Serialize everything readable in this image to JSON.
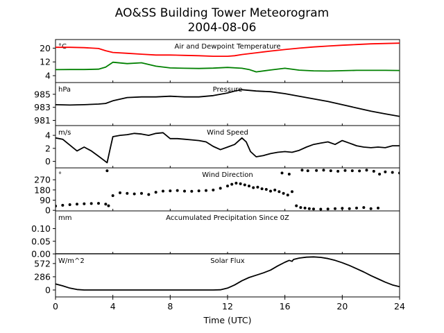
{
  "title": "AO&SS Building Tower Meteorogram",
  "subtitle": "2004-08-06",
  "xlabel": "Time (UTC)",
  "x_ticks": [
    "0",
    "4",
    "8",
    "12",
    "16",
    "20",
    "24"
  ],
  "chart_data": [
    {
      "type": "line",
      "title": "Air and Dewpoint Temperature",
      "unit": "°C",
      "ylim": [
        0,
        25
      ],
      "yticks": [
        4,
        12,
        20
      ],
      "x_range": [
        0,
        24
      ],
      "series": [
        {
          "color": "#ff0000",
          "x": [
            0,
            1,
            2,
            3,
            3.5,
            4,
            5,
            6,
            7,
            8,
            9,
            10,
            11,
            12,
            12.5,
            13,
            14,
            15,
            16,
            17,
            18,
            19,
            20,
            21,
            22,
            23,
            24
          ],
          "values": [
            20.5,
            20.5,
            20.3,
            19.8,
            18.5,
            17.5,
            17,
            16.5,
            16,
            16,
            15.8,
            15.6,
            15.3,
            15.3,
            15.6,
            16.3,
            17.3,
            18.3,
            19.2,
            20,
            20.7,
            21.2,
            21.7,
            22.1,
            22.5,
            22.7,
            22.9
          ]
        },
        {
          "color": "#008000",
          "x": [
            0,
            1,
            2,
            3,
            3.5,
            4,
            5,
            6,
            7,
            8,
            9,
            10,
            11,
            12,
            13,
            13.5,
            14,
            15,
            16,
            17,
            18,
            19,
            20,
            21,
            22,
            23,
            24
          ],
          "values": [
            7.5,
            7.6,
            7.6,
            7.8,
            9,
            11.8,
            11,
            11.5,
            9.5,
            8.5,
            8.3,
            8.2,
            8.4,
            8.8,
            8.3,
            7.6,
            6.2,
            7.3,
            8.3,
            7.2,
            6.8,
            6.7,
            6.9,
            7.1,
            7.1,
            7.1,
            7
          ]
        }
      ]
    },
    {
      "type": "line",
      "title": "Pressure",
      "unit": "hPa",
      "ylim": [
        980.2,
        986.8
      ],
      "yticks": [
        981,
        983,
        985
      ],
      "x_range": [
        0,
        24
      ],
      "series": [
        {
          "color": "#000000",
          "x": [
            0,
            1,
            2,
            3,
            3.5,
            4,
            5,
            6,
            7,
            8,
            9,
            10,
            11,
            12,
            12.5,
            13,
            14,
            15,
            16,
            17,
            18,
            19,
            20,
            21,
            22,
            23,
            24
          ],
          "values": [
            983.4,
            983.35,
            983.4,
            983.5,
            983.6,
            984,
            984.5,
            984.6,
            984.6,
            984.7,
            984.6,
            984.6,
            984.8,
            985.2,
            985.5,
            985.7,
            985.5,
            985.4,
            985.1,
            984.7,
            984.3,
            983.9,
            983.4,
            982.9,
            982.4,
            982,
            981.6
          ]
        }
      ]
    },
    {
      "type": "line",
      "title": "Wind Speed",
      "unit": "m/s",
      "ylim": [
        -1,
        5.5
      ],
      "yticks": [
        0,
        2,
        4
      ],
      "x_range": [
        0,
        24
      ],
      "series": [
        {
          "color": "#000000",
          "x": [
            0,
            0.5,
            1,
            1.5,
            2,
            2.5,
            3,
            3.3,
            3.6,
            3.8,
            4,
            4.5,
            5,
            5.5,
            6,
            6.5,
            7,
            7.5,
            8,
            8.5,
            9,
            9.5,
            10,
            10.5,
            11,
            11.5,
            12,
            12.5,
            13,
            13.3,
            13.6,
            14,
            14.5,
            15,
            15.5,
            16,
            16.5,
            17,
            17.5,
            18,
            18.5,
            19,
            19.5,
            20,
            20.5,
            21,
            21.5,
            22,
            22.5,
            23,
            23.5,
            24
          ],
          "values": [
            3.6,
            3.4,
            2.5,
            1.6,
            2.2,
            1.6,
            0.8,
            0.3,
            -0.2,
            1.8,
            3.8,
            4,
            4.1,
            4.3,
            4.2,
            4,
            4.3,
            4.4,
            3.5,
            3.5,
            3.4,
            3.3,
            3.2,
            3,
            2.3,
            1.8,
            2.2,
            2.6,
            3.6,
            3,
            1.5,
            0.7,
            0.9,
            1.2,
            1.4,
            1.5,
            1.4,
            1.7,
            2.2,
            2.6,
            2.8,
            3,
            2.6,
            3.2,
            2.8,
            2.4,
            2.2,
            2.1,
            2.2,
            2.1,
            2.4,
            2.4
          ]
        }
      ]
    },
    {
      "type": "scatter",
      "title": "Wind Direction",
      "unit": "°",
      "ylim": [
        -5,
        375
      ],
      "yticks": [
        0,
        90,
        180,
        270
      ],
      "x_range": [
        0,
        24
      ],
      "series": [
        {
          "color": "#000000",
          "x": [
            0,
            0.5,
            1,
            1.5,
            2,
            2.5,
            3,
            3.5,
            3.7,
            4,
            4.5,
            5,
            5.5,
            6,
            6.5,
            7,
            7.5,
            8,
            8.5,
            9,
            9.5,
            10,
            10.5,
            11,
            11.5,
            12,
            12.3,
            12.6,
            12.9,
            13.2,
            13.5,
            13.8,
            14.1,
            14.4,
            14.7,
            15,
            15.3,
            15.6,
            15.9,
            16.2,
            16.5,
            16.8,
            17.1,
            17.4,
            17.7,
            18,
            18.5,
            19,
            19.5,
            20,
            20.5,
            21,
            21.5,
            22,
            22.5,
            3.6,
            15.8,
            16.3,
            17.2,
            17.6,
            18.2,
            18.7,
            19.2,
            19.7,
            20.2,
            20.7,
            21.2,
            21.7,
            22.2,
            22.6,
            23,
            23.5,
            24
          ],
          "values": [
            38,
            45,
            50,
            55,
            58,
            60,
            62,
            55,
            40,
            130,
            155,
            150,
            145,
            150,
            140,
            160,
            170,
            172,
            175,
            170,
            168,
            172,
            175,
            180,
            195,
            215,
            230,
            240,
            235,
            225,
            215,
            200,
            205,
            190,
            185,
            170,
            180,
            165,
            150,
            135,
            165,
            40,
            25,
            20,
            15,
            12,
            10,
            12,
            15,
            18,
            15,
            20,
            25,
            15,
            20,
            350,
            330,
            320,
            355,
            350,
            352,
            355,
            350,
            345,
            352,
            350,
            348,
            355,
            345,
            320,
            340,
            335,
            330
          ]
        }
      ]
    },
    {
      "type": "line",
      "title": "Accumulated Precipitation Since 0Z",
      "unit": "mm",
      "ylim": [
        0,
        0.17
      ],
      "yticks": [
        "0.00",
        "0.05",
        "0.10"
      ],
      "x_range": [
        0,
        24
      ],
      "series": [
        {
          "color": "#000000",
          "x": [
            0,
            24
          ],
          "values": [
            0,
            0
          ]
        }
      ]
    },
    {
      "type": "line",
      "title": "Solar Flux",
      "unit": "W/m^2",
      "ylim": [
        -150,
        780
      ],
      "yticks": [
        0,
        286,
        572
      ],
      "x_range": [
        0,
        24
      ],
      "series": [
        {
          "color": "#000000",
          "x": [
            0,
            0.5,
            1,
            1.5,
            2,
            3,
            4,
            5,
            6,
            7,
            8,
            9,
            10,
            11,
            11.5,
            12,
            12.5,
            13,
            13.5,
            14,
            14.5,
            15,
            15.5,
            16,
            16.3,
            16.5,
            16.6,
            17,
            17.5,
            18,
            18.5,
            19,
            19.5,
            20,
            20.5,
            21,
            21.5,
            22,
            22.5,
            23,
            23.5,
            24
          ],
          "values": [
            130,
            90,
            40,
            10,
            0,
            0,
            0,
            0,
            0,
            0,
            0,
            0,
            0,
            0,
            5,
            40,
            110,
            200,
            270,
            320,
            370,
            430,
            520,
            600,
            640,
            620,
            660,
            690,
            710,
            715,
            705,
            680,
            640,
            590,
            530,
            460,
            390,
            310,
            240,
            170,
            110,
            70
          ]
        }
      ]
    }
  ]
}
